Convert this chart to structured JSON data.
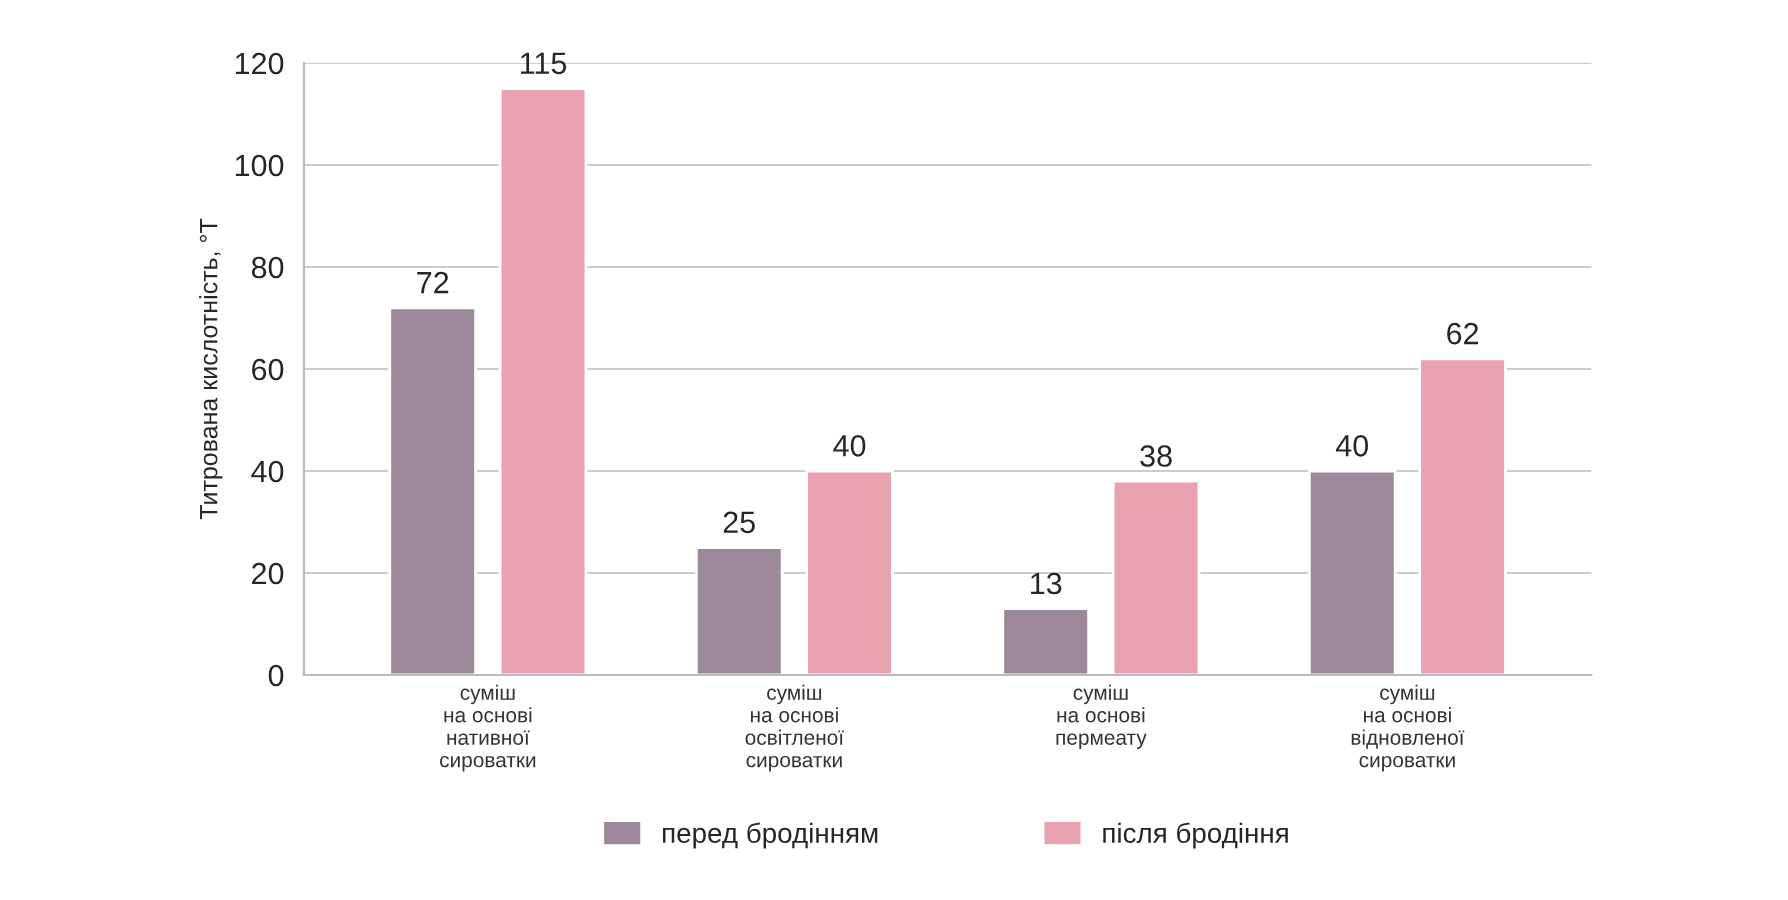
{
  "chart_data": {
    "type": "bar",
    "ylabel": "Титрована кислотність, °Т",
    "categories": [
      "суміш\nна основі\nнативної\nсироватки",
      "суміш\nна основі\nосвітленої\nсироватки",
      "суміш\nна основі\nпермеату",
      "суміш\nна основі\nвідновленої\nсироватки"
    ],
    "series": [
      {
        "name": "перед бродінням",
        "color": "#9c8899",
        "values": [
          72,
          25,
          13,
          40
        ]
      },
      {
        "name": "після бродіння",
        "color": "#e9a3b0",
        "values": [
          115,
          40,
          38,
          62
        ]
      }
    ],
    "ylim": [
      0,
      120
    ],
    "yticks": [
      0,
      20,
      40,
      60,
      80,
      100,
      120
    ],
    "grid": "y",
    "legend": "bottom",
    "data_labels": true
  }
}
